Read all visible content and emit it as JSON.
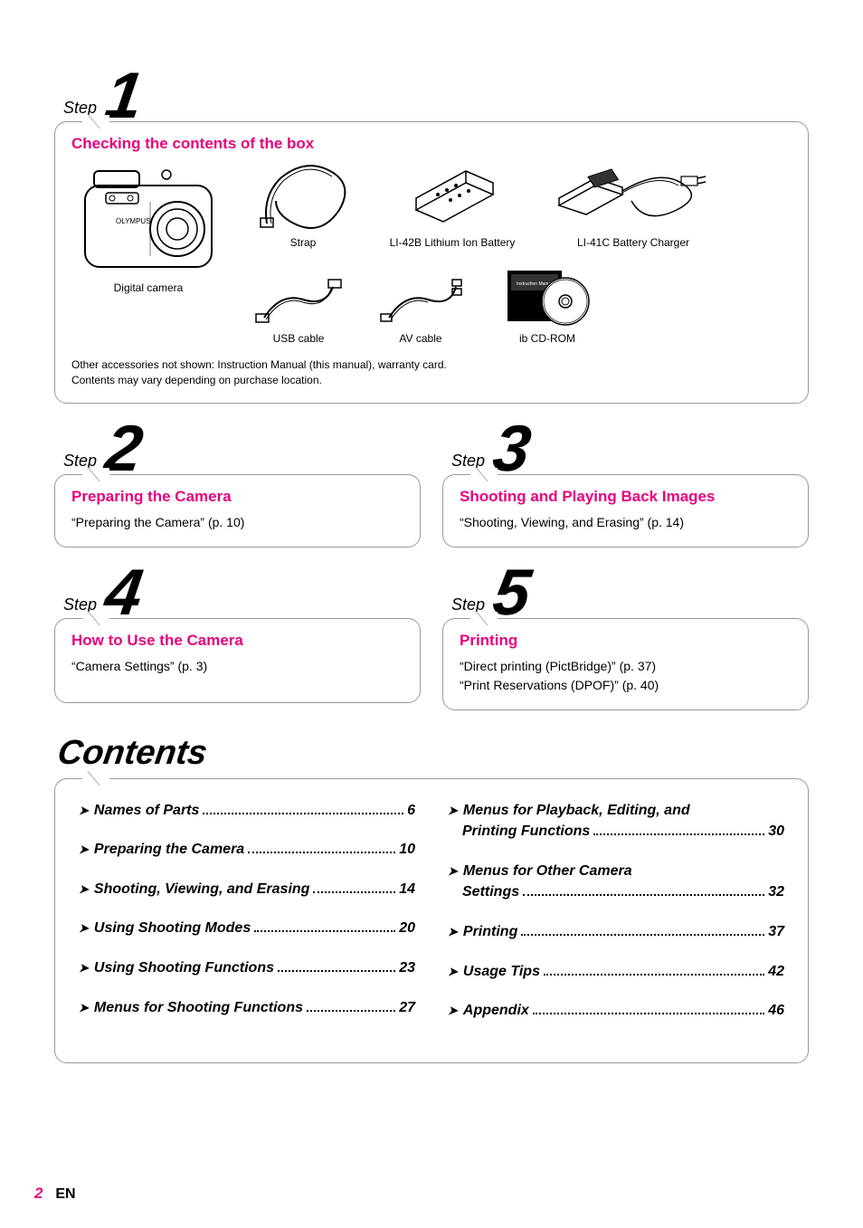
{
  "colors": {
    "accent": "#e6007e",
    "border": "#999999",
    "text": "#000000",
    "background": "#ffffff"
  },
  "typography": {
    "body_font": "Arial, Helvetica, sans-serif",
    "step_label_fontsize": 18,
    "step_number_fontsize": 72,
    "box_title_fontsize": 17,
    "box_text_fontsize": 14,
    "item_caption_fontsize": 12,
    "footnote_fontsize": 12,
    "contents_title_fontsize": 38,
    "toc_fontsize": 16
  },
  "steps": {
    "label": "Step",
    "one": {
      "number": "1",
      "title": "Checking the contents of the box",
      "items": {
        "camera": "Digital camera",
        "strap": "Strap",
        "battery": "LI-42B Lithium Ion Battery",
        "charger": "LI-41C Battery Charger",
        "usb": "USB cable",
        "av": "AV cable",
        "cd": "ib CD-ROM"
      },
      "footnote1": "Other accessories not shown: Instruction Manual (this manual), warranty card.",
      "footnote2": "Contents may vary depending on purchase location."
    },
    "two": {
      "number": "2",
      "title": "Preparing the Camera",
      "text": "“Preparing the Camera” (p. 10)"
    },
    "three": {
      "number": "3",
      "title": "Shooting and Playing Back Images",
      "text": "“Shooting, Viewing, and Erasing” (p. 14)"
    },
    "four": {
      "number": "4",
      "title": "How to Use the Camera",
      "text": "“Camera Settings” (p. 3)"
    },
    "five": {
      "number": "5",
      "title": "Printing",
      "text1": "“Direct printing (PictBridge)” (p. 37)",
      "text2": "“Print Reservations (DPOF)” (p. 40)"
    }
  },
  "contents": {
    "title": "Contents",
    "left": [
      {
        "label": "Names of Parts",
        "page": "6"
      },
      {
        "label": "Preparing the Camera",
        "page": "10"
      },
      {
        "label": "Shooting, Viewing, and Erasing",
        "page": "14"
      },
      {
        "label": "Using Shooting Modes",
        "page": "20"
      },
      {
        "label": "Using Shooting Functions",
        "page": "23"
      },
      {
        "label": "Menus for Shooting Functions",
        "page": "27"
      }
    ],
    "right": [
      {
        "label": "Menus for Playback, Editing, and",
        "label2": "Printing Functions",
        "page": "30"
      },
      {
        "label": "Menus for Other Camera",
        "label2": "Settings",
        "page": "32"
      },
      {
        "label": "Printing",
        "page": "37"
      },
      {
        "label": "Usage Tips",
        "page": "42"
      },
      {
        "label": "Appendix",
        "page": "46"
      }
    ]
  },
  "footer": {
    "page_number": "2",
    "lang": "EN"
  }
}
